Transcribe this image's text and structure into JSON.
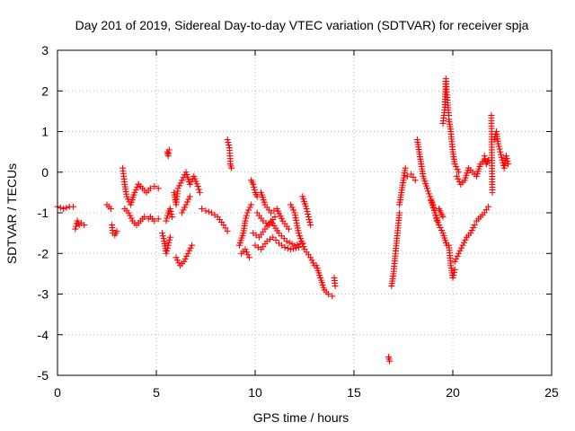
{
  "chart_data": {
    "type": "scatter",
    "title": "Day 201 of 2019, Sidereal Day-to-day VTEC variation (SDTVAR) for receiver spja",
    "xlabel": "GPS time / hours",
    "ylabel": "SDTVAR / TECUs",
    "xlim": [
      0,
      25
    ],
    "ylim": [
      -5,
      3
    ],
    "x_ticks": [
      0,
      5,
      10,
      15,
      20,
      25
    ],
    "y_ticks": [
      3,
      2,
      1,
      0,
      -1,
      -2,
      -3,
      -4,
      -5
    ],
    "grid": true,
    "marker": "+",
    "color": "#ff0000",
    "segments": [
      {
        "x": [
          0.0,
          0.3,
          0.6,
          0.8
        ],
        "y": [
          -0.85,
          -0.9,
          -0.85,
          -0.85
        ]
      },
      {
        "x": [
          0.9,
          1.0,
          1.1,
          1.2,
          1.35
        ],
        "y": [
          -1.4,
          -1.2,
          -1.3,
          -1.25,
          -1.3
        ]
      },
      {
        "x": [
          2.5,
          2.6,
          2.7
        ],
        "y": [
          -0.8,
          -0.85,
          -0.9
        ]
      },
      {
        "x": [
          2.75,
          2.8,
          2.9,
          3.0
        ],
        "y": [
          -1.3,
          -1.5,
          -1.55,
          -1.45
        ]
      },
      {
        "x": [
          3.3,
          3.4,
          3.5,
          3.7,
          3.9,
          4.1
        ],
        "y": [
          0.1,
          -0.3,
          -0.6,
          -0.8,
          -0.5,
          -0.3
        ]
      },
      {
        "x": [
          3.4,
          3.6,
          3.8,
          4.0,
          4.2,
          4.4,
          4.6
        ],
        "y": [
          -0.9,
          -1.0,
          -1.2,
          -1.3,
          -1.2,
          -1.1,
          -1.15
        ]
      },
      {
        "x": [
          4.1,
          4.3,
          4.5,
          4.7,
          4.9,
          5.1
        ],
        "y": [
          -0.3,
          -0.4,
          -0.5,
          -0.4,
          -0.35,
          -0.4
        ]
      },
      {
        "x": [
          4.7,
          4.9,
          5.1
        ],
        "y": [
          -1.1,
          -1.2,
          -1.15
        ]
      },
      {
        "x": [
          5.3,
          5.4,
          5.5,
          5.6,
          5.7
        ],
        "y": [
          -1.5,
          -1.7,
          -2.0,
          -1.8,
          -1.6
        ]
      },
      {
        "x": [
          5.5,
          5.6,
          5.7,
          5.8
        ],
        "y": [
          -1.2,
          -1.0,
          -0.9,
          -1.1
        ]
      },
      {
        "x": [
          5.55,
          5.6,
          5.65
        ],
        "y": [
          0.5,
          0.4,
          0.55
        ]
      },
      {
        "x": [
          5.9,
          6.0,
          6.1,
          6.3,
          6.5,
          6.7,
          6.9,
          7.1,
          7.2
        ],
        "y": [
          -0.5,
          -0.8,
          -0.4,
          -0.2,
          0.0,
          -0.3,
          -0.1,
          -0.35,
          -0.5
        ]
      },
      {
        "x": [
          6.0,
          6.2,
          6.4,
          6.6,
          6.8
        ],
        "y": [
          -2.1,
          -2.3,
          -2.2,
          -2.0,
          -1.8
        ]
      },
      {
        "x": [
          6.3,
          6.5,
          6.7
        ],
        "y": [
          -1.0,
          -0.8,
          -0.6
        ]
      },
      {
        "x": [
          7.3,
          7.5,
          7.8,
          8.1,
          8.4,
          8.6
        ],
        "y": [
          -0.9,
          -0.95,
          -1.0,
          -1.1,
          -1.3,
          -1.45
        ]
      },
      {
        "x": [
          8.6,
          8.7,
          8.75,
          8.8
        ],
        "y": [
          0.8,
          0.6,
          0.2,
          0.1
        ]
      },
      {
        "x": [
          9.2,
          9.4,
          9.5,
          9.6,
          9.8
        ],
        "y": [
          -1.8,
          -1.5,
          -1.2,
          -1.0,
          -0.8
        ]
      },
      {
        "x": [
          9.3,
          9.5,
          9.7
        ],
        "y": [
          -2.0,
          -1.9,
          -2.1
        ]
      },
      {
        "x": [
          9.8,
          9.9,
          10.0,
          10.1
        ],
        "y": [
          -0.2,
          -0.3,
          -0.5,
          -0.6
        ]
      },
      {
        "x": [
          9.9,
          10.2,
          10.5,
          10.8,
          11.2,
          11.6,
          12.0,
          12.4
        ],
        "y": [
          -1.5,
          -1.6,
          -1.4,
          -1.2,
          -1.5,
          -1.7,
          -1.8,
          -1.75
        ]
      },
      {
        "x": [
          10.0,
          10.3,
          10.6,
          10.9,
          11.2,
          11.5,
          11.8,
          12.2
        ],
        "y": [
          -1.8,
          -1.9,
          -1.7,
          -1.6,
          -1.75,
          -1.85,
          -1.9,
          -1.85
        ]
      },
      {
        "x": [
          10.1,
          10.4,
          10.7,
          11.0
        ],
        "y": [
          -1.0,
          -1.2,
          -1.3,
          -1.1
        ]
      },
      {
        "x": [
          10.3,
          10.5,
          10.8,
          11.1,
          11.4,
          11.7
        ],
        "y": [
          -0.5,
          -0.8,
          -1.0,
          -0.9,
          -1.2,
          -1.4
        ]
      },
      {
        "x": [
          11.8,
          12.0,
          12.2,
          12.5,
          12.8,
          13.0
        ],
        "y": [
          -0.8,
          -1.0,
          -1.5,
          -1.9,
          -2.1,
          -2.3
        ]
      },
      {
        "x": [
          12.4,
          12.6,
          12.8
        ],
        "y": [
          -0.6,
          -0.9,
          -1.3
        ]
      },
      {
        "x": [
          13.1,
          13.3,
          13.5,
          13.7,
          13.9
        ],
        "y": [
          -2.3,
          -2.6,
          -2.9,
          -3.0,
          -3.05
        ]
      },
      {
        "x": [
          14.0,
          14.05
        ],
        "y": [
          -2.6,
          -2.8
        ]
      },
      {
        "x": [
          16.75,
          16.8
        ],
        "y": [
          -4.55,
          -4.65
        ]
      },
      {
        "x": [
          16.9,
          17.0,
          17.1,
          17.2,
          17.3
        ],
        "y": [
          -2.8,
          -2.5,
          -2.0,
          -1.5,
          -1.0
        ]
      },
      {
        "x": [
          17.3,
          17.4,
          17.5,
          17.6
        ],
        "y": [
          -0.8,
          -0.5,
          -0.2,
          0.1
        ]
      },
      {
        "x": [
          17.7,
          17.9,
          18.1
        ],
        "y": [
          -0.1,
          -0.05,
          -0.2
        ]
      },
      {
        "x": [
          18.2,
          18.3,
          18.4,
          18.5,
          18.7,
          19.0,
          19.2
        ],
        "y": [
          0.8,
          0.5,
          0.2,
          -0.1,
          -0.4,
          -0.8,
          -1.2
        ]
      },
      {
        "x": [
          18.9,
          19.1,
          19.3,
          19.5,
          19.7
        ],
        "y": [
          -0.7,
          -1.0,
          -1.3,
          -1.5,
          -1.8
        ]
      },
      {
        "x": [
          19.5,
          19.6,
          19.65,
          19.7,
          19.8
        ],
        "y": [
          1.2,
          1.6,
          2.3,
          1.9,
          1.4
        ]
      },
      {
        "x": [
          19.8,
          19.9,
          20.0,
          20.1,
          20.3
        ],
        "y": [
          1.3,
          1.0,
          0.5,
          0.2,
          0.0
        ]
      },
      {
        "x": [
          19.8,
          19.9,
          20.0,
          20.1
        ],
        "y": [
          -1.8,
          -2.3,
          -2.6,
          -2.4
        ]
      },
      {
        "x": [
          20.1,
          20.3,
          20.5,
          20.7,
          20.9,
          21.1
        ],
        "y": [
          -2.2,
          -2.0,
          -1.8,
          -1.6,
          -1.5,
          -1.3
        ]
      },
      {
        "x": [
          20.2,
          20.4,
          20.6,
          20.8,
          21.0,
          21.2,
          21.4,
          21.6
        ],
        "y": [
          -0.1,
          -0.3,
          -0.2,
          0.1,
          0.0,
          -0.1,
          0.2,
          0.3
        ]
      },
      {
        "x": [
          21.2,
          21.4,
          21.6,
          21.8
        ],
        "y": [
          -1.2,
          -1.1,
          -1.0,
          -0.85
        ]
      },
      {
        "x": [
          21.6,
          21.7,
          21.8
        ],
        "y": [
          0.4,
          0.2,
          0.3
        ]
      },
      {
        "x": [
          21.95,
          22.0
        ],
        "y": [
          1.4,
          -0.5
        ]
      },
      {
        "x": [
          22.1,
          22.2,
          22.3,
          22.4,
          22.5,
          22.6,
          22.7,
          22.8
        ],
        "y": [
          0.8,
          1.0,
          0.7,
          0.5,
          0.3,
          0.1,
          0.4,
          0.2
        ]
      },
      {
        "x": [
          19.3,
          19.4,
          19.5
        ],
        "y": [
          -0.9,
          -1.0,
          -1.1
        ]
      }
    ]
  }
}
